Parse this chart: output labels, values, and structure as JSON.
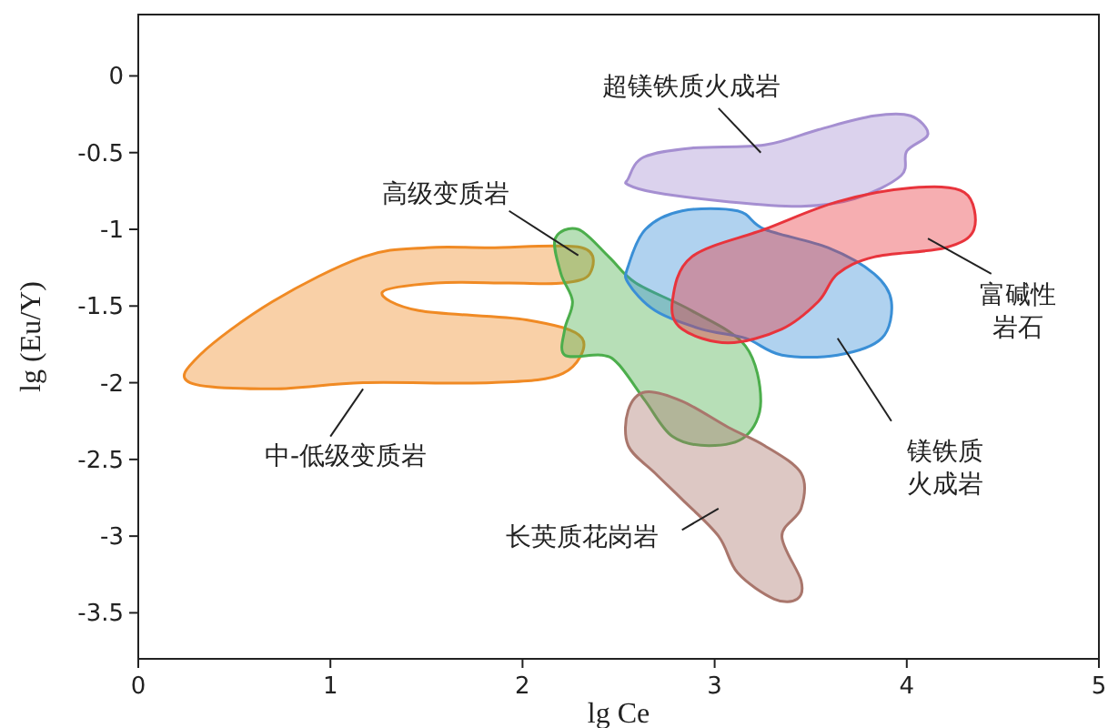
{
  "chart_data": {
    "type": "area",
    "xlabel": "lg Ce",
    "ylabel": "lg (Eu/Y)",
    "xlim": [
      0,
      5
    ],
    "ylim": [
      -3.8,
      0.4
    ],
    "xticks": [
      0,
      1,
      2,
      3,
      4,
      5
    ],
    "yticks": [
      0,
      -0.5,
      -1,
      -1.5,
      -2,
      -2.5,
      -3,
      -3.5
    ],
    "grid": false,
    "legend": false,
    "series": [
      {
        "name": "中-低级变质岩",
        "color": "#f08a24",
        "x": [
          0.27,
          0.32,
          0.7,
          1.17,
          1.5,
          1.83,
          2.31,
          2.35,
          2.21,
          1.93,
          1.55,
          1.27,
          1.46,
          2.02,
          2.31,
          2.21,
          1.84,
          1.17,
          0.7
        ],
        "values": [
          -2.0,
          -1.82,
          -1.47,
          -1.18,
          -1.12,
          -1.12,
          -1.12,
          -1.29,
          -1.35,
          -1.35,
          -1.35,
          -1.41,
          -1.53,
          -1.59,
          -1.71,
          -1.94,
          -2.0,
          -2.0,
          -2.04
        ]
      },
      {
        "name": "高级变质岩",
        "color": "#4cae4c",
        "x": [
          2.17,
          2.29,
          2.45,
          2.59,
          2.88,
          3.16,
          3.24,
          3.16,
          2.97,
          2.78,
          2.64,
          2.5,
          2.41,
          2.22,
          2.22,
          2.26,
          2.2
        ],
        "values": [
          -1.06,
          -1.0,
          -1.18,
          -1.35,
          -1.53,
          -1.76,
          -2.12,
          -2.35,
          -2.41,
          -2.35,
          -2.12,
          -1.88,
          -1.82,
          -1.82,
          -1.65,
          -1.47,
          -1.29
        ]
      },
      {
        "name": "长英质花岗岩",
        "color": "#a9766c",
        "x": [
          2.55,
          2.64,
          2.83,
          3.07,
          3.26,
          3.45,
          3.45,
          3.35,
          3.45,
          3.43,
          3.31,
          3.12,
          3.02,
          2.83,
          2.69,
          2.55
        ],
        "values": [
          -2.18,
          -2.06,
          -2.12,
          -2.29,
          -2.41,
          -2.59,
          -2.82,
          -3.0,
          -3.29,
          -3.41,
          -3.41,
          -3.24,
          -3.0,
          -2.76,
          -2.59,
          -2.41
        ]
      },
      {
        "name": "镁铁质火成岩",
        "color": "#3a8fd6",
        "x": [
          2.55,
          2.64,
          2.83,
          3.12,
          3.26,
          3.59,
          3.83,
          3.92,
          3.87,
          3.64,
          3.35,
          3.16,
          2.93,
          2.69,
          2.55
        ],
        "values": [
          -1.24,
          -1.0,
          -0.88,
          -0.88,
          -1.0,
          -1.12,
          -1.29,
          -1.47,
          -1.71,
          -1.82,
          -1.82,
          -1.71,
          -1.65,
          -1.53,
          -1.35
        ]
      },
      {
        "name": "超镁铁质火成岩",
        "color": "#a58fd1",
        "x": [
          2.55,
          2.63,
          2.88,
          3.26,
          3.54,
          3.83,
          4.02,
          4.11,
          4.0,
          3.97,
          3.73,
          3.45,
          3.07,
          2.69,
          2.55
        ],
        "values": [
          -0.67,
          -0.53,
          -0.47,
          -0.45,
          -0.35,
          -0.26,
          -0.26,
          -0.38,
          -0.49,
          -0.65,
          -0.8,
          -0.85,
          -0.82,
          -0.76,
          -0.71
        ]
      },
      {
        "name": "富碱性岩石",
        "color": "#e8343c",
        "x": [
          2.78,
          2.88,
          3.26,
          3.64,
          4.02,
          4.3,
          4.35,
          4.2,
          3.83,
          3.64,
          3.54,
          3.35,
          3.07,
          2.83
        ],
        "values": [
          -1.47,
          -1.18,
          -1.0,
          -0.82,
          -0.73,
          -0.76,
          -1.0,
          -1.12,
          -1.18,
          -1.29,
          -1.47,
          -1.65,
          -1.74,
          -1.65
        ]
      }
    ]
  }
}
